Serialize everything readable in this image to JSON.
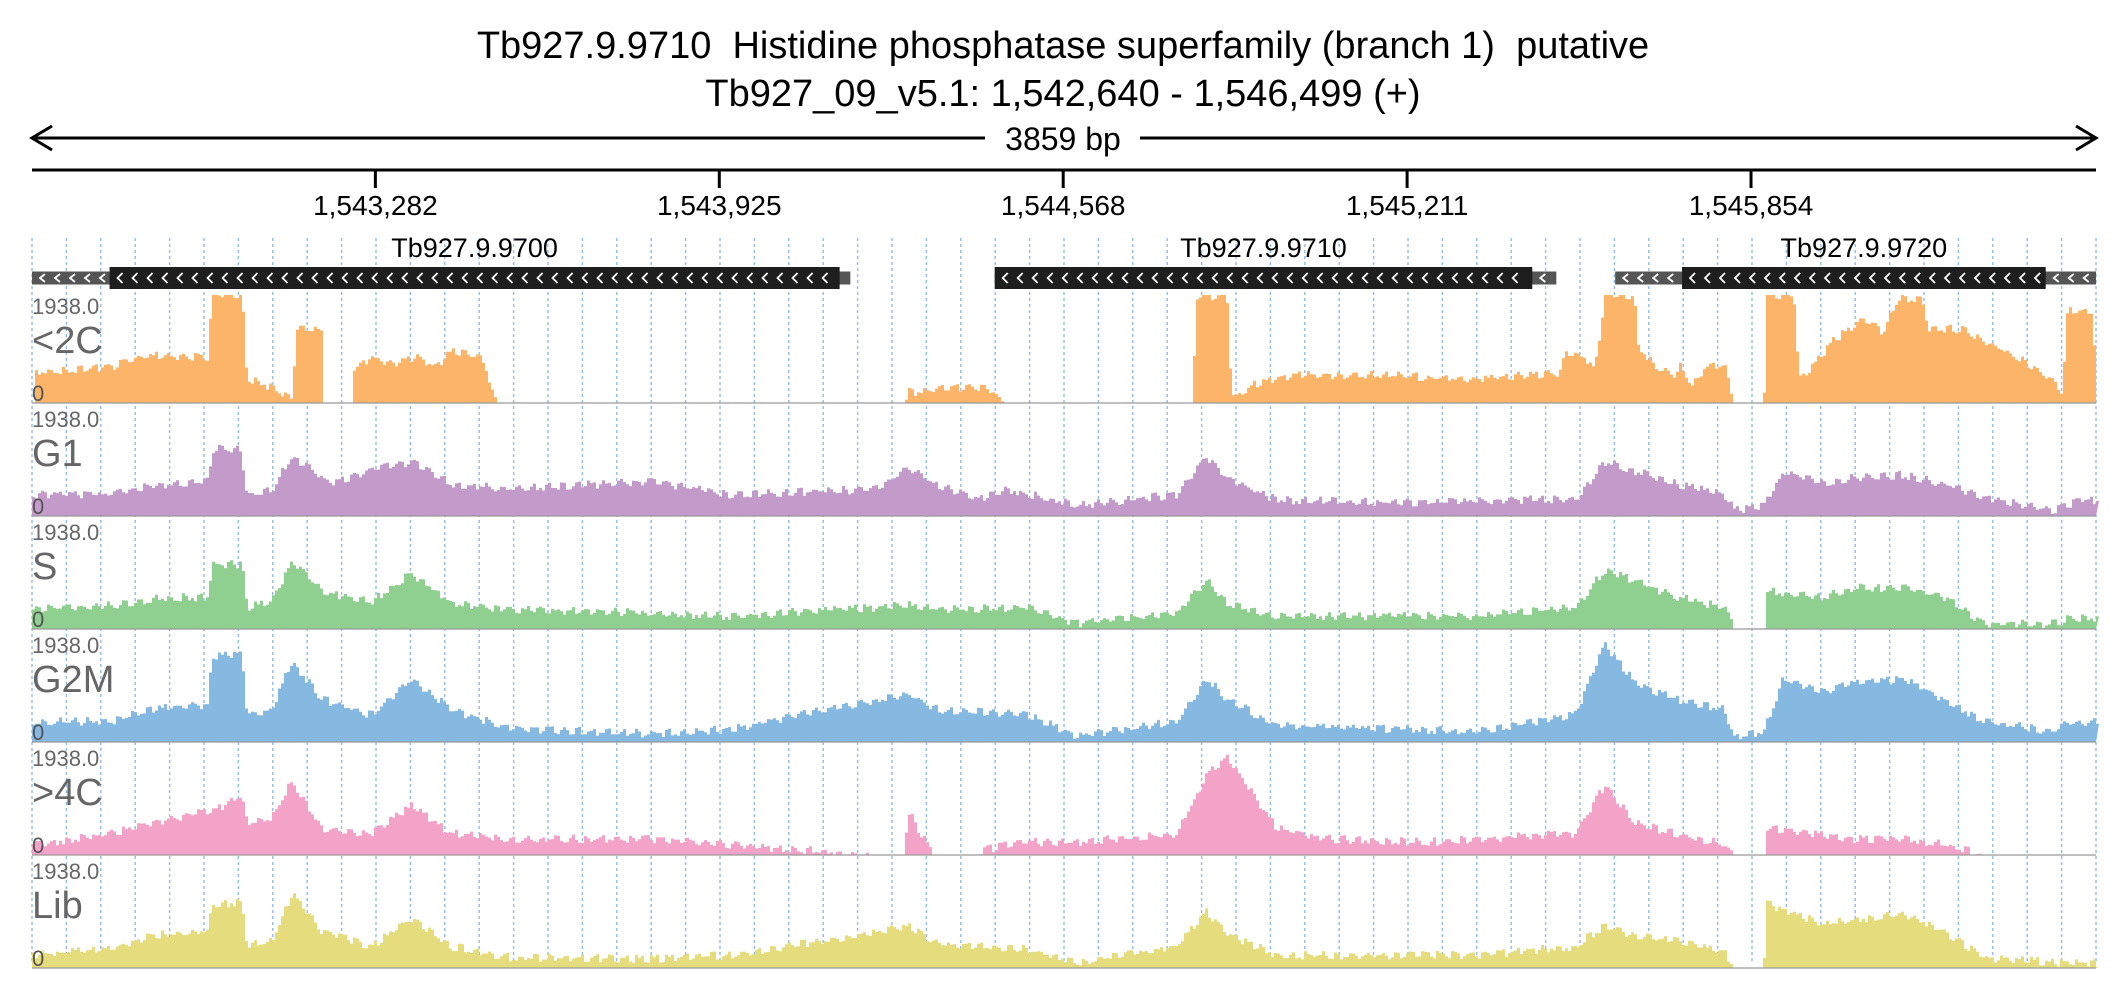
{
  "title": {
    "line1": "Tb927.9.9710  Histidine phosphatase superfamily (branch 1)  putative",
    "line2": "Tb927_09_v5.1: 1,542,640 - 1,546,499 (+)"
  },
  "chart_data": {
    "type": "area",
    "region": {
      "chromosome": "Tb927_09_v5.1",
      "start": 1542640,
      "end": 1546499,
      "strand": "+",
      "span_label": "3859 bp"
    },
    "ruler_ticks": [
      {
        "pos": 1543282,
        "label": "1,543,282"
      },
      {
        "pos": 1543925,
        "label": "1,543,925"
      },
      {
        "pos": 1544568,
        "label": "1,544,568"
      },
      {
        "pos": 1545211,
        "label": "1,545,211"
      },
      {
        "pos": 1545854,
        "label": "1,545,854"
      }
    ],
    "genes": [
      {
        "name": "Tb927.9.9700",
        "strand": "-",
        "start": 1542640,
        "end": 1544170,
        "cds_start": 1542785,
        "cds_end": 1544150
      },
      {
        "name": "Tb927.9.9710",
        "strand": "-",
        "start": 1544440,
        "end": 1545490,
        "cds_start": 1544440,
        "cds_end": 1545445
      },
      {
        "name": "Tb927.9.9720",
        "strand": "-",
        "start": 1545600,
        "end": 1546499,
        "cds_start": 1545725,
        "cds_end": 1546405
      }
    ],
    "y_range": [
      0,
      1938.0
    ],
    "y_max_label": "1938.0",
    "y_min_label": "0",
    "grid": true,
    "tracks": [
      {
        "name": "<2C",
        "color": "#FBB468",
        "profile": [
          [
            0,
            0
          ],
          [
            1,
            0.28
          ],
          [
            80,
            0.34
          ],
          [
            120,
            0.44
          ],
          [
            175,
            0.42
          ],
          [
            180,
            1.0
          ],
          [
            210,
            1.0
          ],
          [
            215,
            0.22
          ],
          [
            240,
            0.15
          ],
          [
            260,
            0.05
          ],
          [
            265,
            0.68
          ],
          [
            290,
            0.68
          ],
          [
            292,
            0.0
          ],
          [
            320,
            0.0
          ],
          [
            322,
            0.32
          ],
          [
            340,
            0.42
          ],
          [
            360,
            0.36
          ],
          [
            385,
            0.42
          ],
          [
            405,
            0.33
          ],
          [
            420,
            0.48
          ],
          [
            450,
            0.42
          ],
          [
            455,
            0.32
          ],
          [
            465,
            0.0
          ],
          [
            875,
            0.0
          ],
          [
            880,
            0.1
          ],
          [
            920,
            0.13
          ],
          [
            950,
            0.15
          ],
          [
            965,
            0.1
          ],
          [
            975,
            0.0
          ],
          [
            1165,
            0.0
          ],
          [
            1170,
            0.98
          ],
          [
            1200,
            1.0
          ],
          [
            1205,
            0.05
          ],
          [
            1230,
            0.18
          ],
          [
            1270,
            0.26
          ],
          [
            1350,
            0.26
          ],
          [
            1450,
            0.22
          ],
          [
            1500,
            0.26
          ],
          [
            1535,
            0.28
          ],
          [
            1540,
            0.45
          ],
          [
            1560,
            0.42
          ],
          [
            1570,
            0.3
          ],
          [
            1580,
            1.0
          ],
          [
            1610,
            1.0
          ],
          [
            1612,
            0.55
          ],
          [
            1630,
            0.35
          ],
          [
            1650,
            0.25
          ],
          [
            1655,
            0.35
          ],
          [
            1665,
            0.2
          ],
          [
            1675,
            0.2
          ],
          [
            1680,
            0.35
          ],
          [
            1700,
            0.35
          ],
          [
            1710,
            0.0
          ],
          [
            1740,
            0.0
          ],
          [
            1742,
            1.0
          ],
          [
            1770,
            1.0
          ],
          [
            1775,
            0.2
          ],
          [
            1810,
            0.58
          ],
          [
            1840,
            0.78
          ],
          [
            1860,
            0.66
          ],
          [
            1875,
            0.98
          ],
          [
            1900,
            0.95
          ],
          [
            1905,
            0.7
          ],
          [
            1940,
            0.68
          ],
          [
            2000,
            0.4
          ],
          [
            2030,
            0.2
          ],
          [
            2040,
            0.1
          ],
          [
            2045,
            0.85
          ],
          [
            2070,
            0.85
          ],
          [
            2075,
            0.0
          ]
        ]
      },
      {
        "name": "G1",
        "color": "#C39BCB",
        "profile": [
          [
            0,
            0.2
          ],
          [
            80,
            0.2
          ],
          [
            120,
            0.28
          ],
          [
            175,
            0.32
          ],
          [
            180,
            0.62
          ],
          [
            208,
            0.62
          ],
          [
            215,
            0.2
          ],
          [
            240,
            0.25
          ],
          [
            260,
            0.55
          ],
          [
            300,
            0.3
          ],
          [
            350,
            0.45
          ],
          [
            380,
            0.5
          ],
          [
            420,
            0.3
          ],
          [
            480,
            0.25
          ],
          [
            620,
            0.32
          ],
          [
            700,
            0.2
          ],
          [
            850,
            0.25
          ],
          [
            880,
            0.45
          ],
          [
            905,
            0.3
          ],
          [
            950,
            0.15
          ],
          [
            980,
            0.25
          ],
          [
            1050,
            0.1
          ],
          [
            1150,
            0.2
          ],
          [
            1180,
            0.55
          ],
          [
            1200,
            0.35
          ],
          [
            1250,
            0.15
          ],
          [
            1400,
            0.12
          ],
          [
            1500,
            0.15
          ],
          [
            1550,
            0.15
          ],
          [
            1580,
            0.5
          ],
          [
            1610,
            0.42
          ],
          [
            1650,
            0.3
          ],
          [
            1700,
            0.2
          ],
          [
            1710,
            0.05
          ],
          [
            1740,
            0.1
          ],
          [
            1760,
            0.4
          ],
          [
            1800,
            0.3
          ],
          [
            1830,
            0.36
          ],
          [
            1880,
            0.38
          ],
          [
            1920,
            0.3
          ],
          [
            1960,
            0.18
          ],
          [
            2030,
            0.05
          ],
          [
            2060,
            0.15
          ],
          [
            2075,
            0.15
          ]
        ]
      },
      {
        "name": "S",
        "color": "#8FCF8F",
        "profile": [
          [
            0,
            0.18
          ],
          [
            80,
            0.22
          ],
          [
            120,
            0.28
          ],
          [
            175,
            0.3
          ],
          [
            180,
            0.6
          ],
          [
            210,
            0.6
          ],
          [
            215,
            0.2
          ],
          [
            240,
            0.25
          ],
          [
            260,
            0.62
          ],
          [
            290,
            0.35
          ],
          [
            340,
            0.25
          ],
          [
            380,
            0.52
          ],
          [
            420,
            0.25
          ],
          [
            480,
            0.18
          ],
          [
            620,
            0.15
          ],
          [
            700,
            0.12
          ],
          [
            880,
            0.22
          ],
          [
            910,
            0.18
          ],
          [
            1000,
            0.2
          ],
          [
            1050,
            0.05
          ],
          [
            1150,
            0.15
          ],
          [
            1180,
            0.45
          ],
          [
            1200,
            0.25
          ],
          [
            1250,
            0.12
          ],
          [
            1450,
            0.12
          ],
          [
            1550,
            0.2
          ],
          [
            1580,
            0.55
          ],
          [
            1610,
            0.45
          ],
          [
            1650,
            0.3
          ],
          [
            1700,
            0.2
          ],
          [
            1710,
            0.0
          ],
          [
            1740,
            0.0
          ],
          [
            1742,
            0.35
          ],
          [
            1800,
            0.3
          ],
          [
            1830,
            0.38
          ],
          [
            1880,
            0.38
          ],
          [
            1920,
            0.3
          ],
          [
            1960,
            0.05
          ],
          [
            2030,
            0.05
          ],
          [
            2050,
            0.1
          ],
          [
            2075,
            0.1
          ]
        ]
      },
      {
        "name": "G2M",
        "color": "#86B9E2",
        "profile": [
          [
            0,
            0.18
          ],
          [
            80,
            0.2
          ],
          [
            120,
            0.3
          ],
          [
            175,
            0.35
          ],
          [
            180,
            0.8
          ],
          [
            210,
            0.8
          ],
          [
            215,
            0.25
          ],
          [
            240,
            0.3
          ],
          [
            260,
            0.75
          ],
          [
            290,
            0.4
          ],
          [
            340,
            0.25
          ],
          [
            380,
            0.58
          ],
          [
            420,
            0.3
          ],
          [
            480,
            0.12
          ],
          [
            620,
            0.08
          ],
          [
            700,
            0.12
          ],
          [
            880,
            0.45
          ],
          [
            910,
            0.3
          ],
          [
            1000,
            0.25
          ],
          [
            1050,
            0.05
          ],
          [
            1150,
            0.2
          ],
          [
            1180,
            0.6
          ],
          [
            1200,
            0.4
          ],
          [
            1250,
            0.15
          ],
          [
            1450,
            0.1
          ],
          [
            1550,
            0.25
          ],
          [
            1580,
            0.9
          ],
          [
            1610,
            0.55
          ],
          [
            1650,
            0.4
          ],
          [
            1700,
            0.3
          ],
          [
            1710,
            0.05
          ],
          [
            1740,
            0.1
          ],
          [
            1760,
            0.6
          ],
          [
            1800,
            0.45
          ],
          [
            1830,
            0.55
          ],
          [
            1880,
            0.58
          ],
          [
            1920,
            0.4
          ],
          [
            1960,
            0.2
          ],
          [
            2030,
            0.1
          ],
          [
            2045,
            0.18
          ],
          [
            2075,
            0.18
          ]
        ]
      },
      {
        "name": ">4C",
        "color": "#F4A3C8",
        "profile": [
          [
            0,
            0.1
          ],
          [
            80,
            0.2
          ],
          [
            120,
            0.3
          ],
          [
            175,
            0.4
          ],
          [
            180,
            0.4
          ],
          [
            210,
            0.55
          ],
          [
            215,
            0.3
          ],
          [
            240,
            0.35
          ],
          [
            260,
            0.68
          ],
          [
            290,
            0.25
          ],
          [
            340,
            0.2
          ],
          [
            380,
            0.45
          ],
          [
            420,
            0.2
          ],
          [
            480,
            0.15
          ],
          [
            620,
            0.15
          ],
          [
            700,
            0.1
          ],
          [
            840,
            0.0
          ],
          [
            875,
            0.0
          ],
          [
            880,
            0.4
          ],
          [
            905,
            0.0
          ],
          [
            950,
            0.0
          ],
          [
            955,
            0.05
          ],
          [
            1000,
            0.12
          ],
          [
            1050,
            0.12
          ],
          [
            1150,
            0.2
          ],
          [
            1180,
            0.75
          ],
          [
            1200,
            0.9
          ],
          [
            1250,
            0.25
          ],
          [
            1300,
            0.15
          ],
          [
            1400,
            0.12
          ],
          [
            1550,
            0.2
          ],
          [
            1580,
            0.65
          ],
          [
            1610,
            0.3
          ],
          [
            1650,
            0.2
          ],
          [
            1700,
            0.1
          ],
          [
            1710,
            0.0
          ],
          [
            1740,
            0.0
          ],
          [
            1742,
            0.25
          ],
          [
            1800,
            0.18
          ],
          [
            1830,
            0.15
          ],
          [
            1880,
            0.15
          ],
          [
            1920,
            0.1
          ],
          [
            1960,
            0.0
          ],
          [
            2075,
            0.0
          ]
        ]
      },
      {
        "name": "Lib",
        "color": "#E5DC7D",
        "profile": [
          [
            0,
            0.12
          ],
          [
            80,
            0.18
          ],
          [
            120,
            0.3
          ],
          [
            175,
            0.35
          ],
          [
            180,
            0.6
          ],
          [
            210,
            0.6
          ],
          [
            215,
            0.2
          ],
          [
            240,
            0.25
          ],
          [
            260,
            0.68
          ],
          [
            290,
            0.35
          ],
          [
            340,
            0.2
          ],
          [
            380,
            0.45
          ],
          [
            420,
            0.2
          ],
          [
            480,
            0.1
          ],
          [
            620,
            0.08
          ],
          [
            700,
            0.12
          ],
          [
            880,
            0.38
          ],
          [
            910,
            0.22
          ],
          [
            1000,
            0.18
          ],
          [
            1050,
            0.05
          ],
          [
            1150,
            0.2
          ],
          [
            1180,
            0.52
          ],
          [
            1200,
            0.32
          ],
          [
            1250,
            0.12
          ],
          [
            1450,
            0.12
          ],
          [
            1550,
            0.2
          ],
          [
            1580,
            0.4
          ],
          [
            1610,
            0.3
          ],
          [
            1650,
            0.25
          ],
          [
            1700,
            0.15
          ],
          [
            1710,
            0.0
          ],
          [
            1740,
            0.0
          ],
          [
            1742,
            0.6
          ],
          [
            1800,
            0.4
          ],
          [
            1830,
            0.45
          ],
          [
            1880,
            0.5
          ],
          [
            1920,
            0.35
          ],
          [
            1960,
            0.1
          ],
          [
            2030,
            0.05
          ],
          [
            2050,
            0.05
          ],
          [
            2075,
            0.05
          ]
        ]
      }
    ]
  }
}
